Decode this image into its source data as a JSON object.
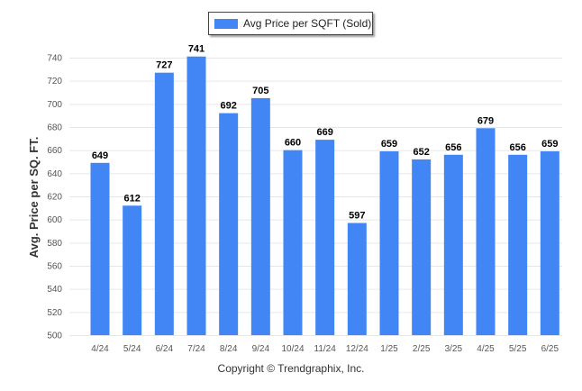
{
  "chart_data": {
    "type": "bar",
    "title": "",
    "xlabel": "",
    "ylabel": "Avg. Price per SQ. FT.",
    "categories": [
      "4/24",
      "5/24",
      "6/24",
      "7/24",
      "8/24",
      "9/24",
      "10/24",
      "11/24",
      "12/24",
      "1/25",
      "2/25",
      "3/25",
      "4/25",
      "5/25",
      "6/25"
    ],
    "series": [
      {
        "name": "Avg Price per SQFT (Sold)",
        "color": "#4285f4",
        "values": [
          649,
          612,
          727,
          741,
          692,
          705,
          660,
          669,
          597,
          659,
          652,
          656,
          679,
          656,
          659
        ]
      }
    ],
    "ylim": [
      500,
      740
    ],
    "yticks": [
      500,
      520,
      540,
      560,
      580,
      600,
      620,
      640,
      660,
      680,
      700,
      720,
      740
    ],
    "grid": true,
    "legend_position": "top-center",
    "data_labels": true
  },
  "legend": {
    "label": "Avg Price per SQFT (Sold)"
  },
  "footer": {
    "text": "Copyright © Trendgraphix, Inc."
  }
}
